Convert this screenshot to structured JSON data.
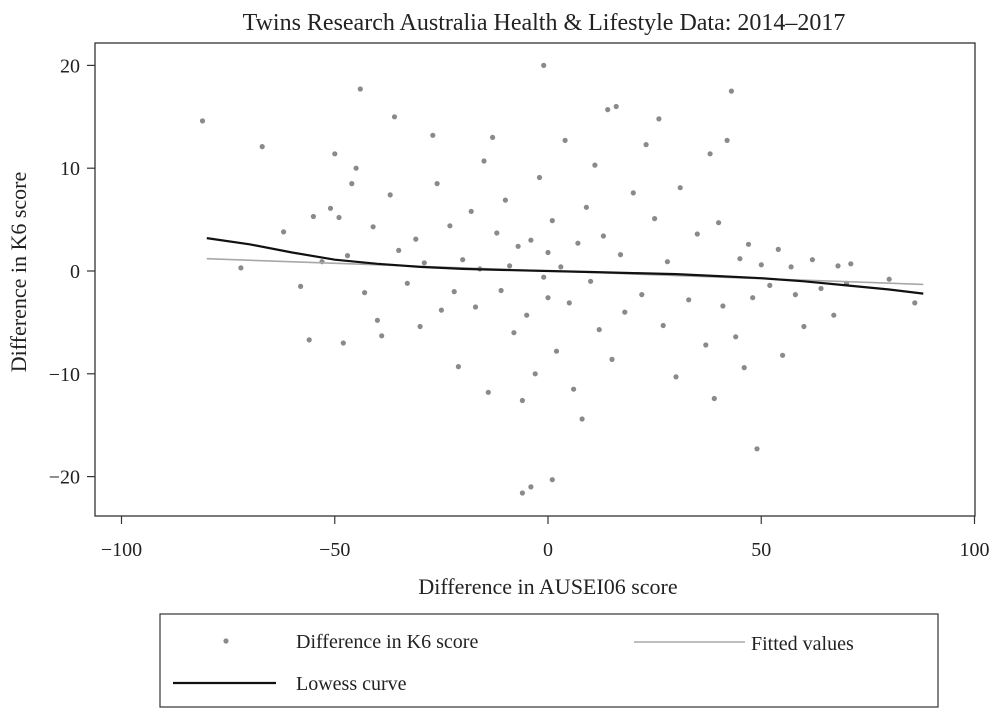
{
  "chart_data": {
    "type": "scatter",
    "title": "Twins Research Australia Health & Lifestyle Data: 2014–2017",
    "xlabel": "Difference in AUSEI06 score",
    "ylabel": "Difference in K6 score",
    "xlim": [
      -100,
      100
    ],
    "ylim": [
      -22,
      20
    ],
    "xticks": [
      -100,
      -50,
      0,
      50,
      100
    ],
    "xtick_labels": [
      "−100",
      "−50",
      "0",
      "50",
      "100"
    ],
    "yticks": [
      -20,
      -10,
      0,
      10,
      20
    ],
    "ytick_labels": [
      "−20",
      "−10",
      "0",
      "10",
      "20"
    ],
    "grid": false,
    "legend_position": "bottom",
    "colors": {
      "points": "#8a8a8a",
      "fitted": "#a8a8a8",
      "lowess": "#111111",
      "axis": "#333333"
    },
    "series": [
      {
        "name": "Difference in K6 score",
        "kind": "scatter",
        "points": [
          [
            -81,
            14.6
          ],
          [
            -67,
            12.1
          ],
          [
            -72,
            0.3
          ],
          [
            -62,
            3.8
          ],
          [
            -58,
            -1.5
          ],
          [
            -56,
            -6.7
          ],
          [
            -55,
            5.3
          ],
          [
            -53,
            0.9
          ],
          [
            -51,
            6.1
          ],
          [
            -50,
            11.4
          ],
          [
            -49,
            5.2
          ],
          [
            -48,
            -7.0
          ],
          [
            -47,
            1.5
          ],
          [
            -46,
            8.5
          ],
          [
            -45,
            10.0
          ],
          [
            -44,
            17.7
          ],
          [
            -43,
            -2.1
          ],
          [
            -41,
            4.3
          ],
          [
            -40,
            -4.8
          ],
          [
            -39,
            -6.3
          ],
          [
            -37,
            7.4
          ],
          [
            -36,
            15.0
          ],
          [
            -35,
            2.0
          ],
          [
            -33,
            -1.2
          ],
          [
            -31,
            3.1
          ],
          [
            -30,
            -5.4
          ],
          [
            -29,
            0.8
          ],
          [
            -27,
            13.2
          ],
          [
            -26,
            8.5
          ],
          [
            -25,
            -3.8
          ],
          [
            -23,
            4.4
          ],
          [
            -22,
            -2.0
          ],
          [
            -21,
            -9.3
          ],
          [
            -20,
            1.1
          ],
          [
            -18,
            5.8
          ],
          [
            -17,
            -3.5
          ],
          [
            -16,
            0.2
          ],
          [
            -15,
            10.7
          ],
          [
            -14,
            -11.8
          ],
          [
            -13,
            13.0
          ],
          [
            -12,
            3.7
          ],
          [
            -11,
            -1.9
          ],
          [
            -10,
            6.9
          ],
          [
            -9,
            0.5
          ],
          [
            -8,
            -6.0
          ],
          [
            -7,
            2.4
          ],
          [
            -6,
            -12.6
          ],
          [
            -5,
            -4.3
          ],
          [
            -4,
            3.0
          ],
          [
            -3,
            -10.0
          ],
          [
            -2,
            9.1
          ],
          [
            -1,
            -0.6
          ],
          [
            -1,
            20.0
          ],
          [
            0,
            1.8
          ],
          [
            0,
            -2.6
          ],
          [
            1,
            4.9
          ],
          [
            2,
            -7.8
          ],
          [
            3,
            0.4
          ],
          [
            4,
            12.7
          ],
          [
            5,
            -3.1
          ],
          [
            6,
            -11.5
          ],
          [
            7,
            2.7
          ],
          [
            8,
            -14.4
          ],
          [
            9,
            6.2
          ],
          [
            10,
            -1.0
          ],
          [
            11,
            10.3
          ],
          [
            12,
            -5.7
          ],
          [
            13,
            3.4
          ],
          [
            14,
            15.7
          ],
          [
            15,
            -8.6
          ],
          [
            16,
            16.0
          ],
          [
            17,
            1.6
          ],
          [
            18,
            -4.0
          ],
          [
            20,
            7.6
          ],
          [
            22,
            -2.3
          ],
          [
            23,
            12.3
          ],
          [
            25,
            5.1
          ],
          [
            26,
            14.8
          ],
          [
            27,
            -5.3
          ],
          [
            28,
            0.9
          ],
          [
            30,
            -10.3
          ],
          [
            31,
            8.1
          ],
          [
            33,
            -2.8
          ],
          [
            35,
            3.6
          ],
          [
            37,
            -7.2
          ],
          [
            38,
            11.4
          ],
          [
            39,
            -12.4
          ],
          [
            40,
            4.7
          ],
          [
            41,
            -3.4
          ],
          [
            42,
            12.7
          ],
          [
            43,
            17.5
          ],
          [
            44,
            -6.4
          ],
          [
            45,
            1.2
          ],
          [
            46,
            -9.4
          ],
          [
            47,
            2.6
          ],
          [
            48,
            -2.6
          ],
          [
            49,
            -17.3
          ],
          [
            50,
            0.6
          ],
          [
            52,
            -1.4
          ],
          [
            54,
            2.1
          ],
          [
            55,
            -8.2
          ],
          [
            57,
            0.4
          ],
          [
            58,
            -2.3
          ],
          [
            60,
            -5.4
          ],
          [
            62,
            1.1
          ],
          [
            64,
            -1.7
          ],
          [
            67,
            -4.3
          ],
          [
            68,
            0.5
          ],
          [
            70,
            -1.2
          ],
          [
            71,
            0.7
          ],
          [
            80,
            -0.8
          ],
          [
            86,
            -3.1
          ],
          [
            -6,
            -21.6
          ],
          [
            -4,
            -21.0
          ],
          [
            1,
            -20.3
          ]
        ]
      },
      {
        "name": "Fitted values",
        "kind": "line",
        "points": [
          [
            -80,
            1.2
          ],
          [
            88,
            -1.3
          ]
        ]
      },
      {
        "name": "Lowess curve",
        "kind": "line",
        "points": [
          [
            -80,
            3.2
          ],
          [
            -70,
            2.6
          ],
          [
            -60,
            1.8
          ],
          [
            -50,
            1.1
          ],
          [
            -40,
            0.7
          ],
          [
            -30,
            0.4
          ],
          [
            -20,
            0.2
          ],
          [
            -10,
            0.1
          ],
          [
            0,
            0.0
          ],
          [
            10,
            -0.1
          ],
          [
            20,
            -0.2
          ],
          [
            30,
            -0.3
          ],
          [
            40,
            -0.5
          ],
          [
            50,
            -0.7
          ],
          [
            60,
            -1.0
          ],
          [
            70,
            -1.4
          ],
          [
            80,
            -1.8
          ],
          [
            88,
            -2.2
          ]
        ]
      }
    ]
  },
  "legend": {
    "items": [
      {
        "label": "Difference in K6 score",
        "kind": "scatter"
      },
      {
        "label": "Fitted values",
        "kind": "line-fitted"
      },
      {
        "label": "Lowess curve",
        "kind": "line-lowess"
      }
    ]
  }
}
